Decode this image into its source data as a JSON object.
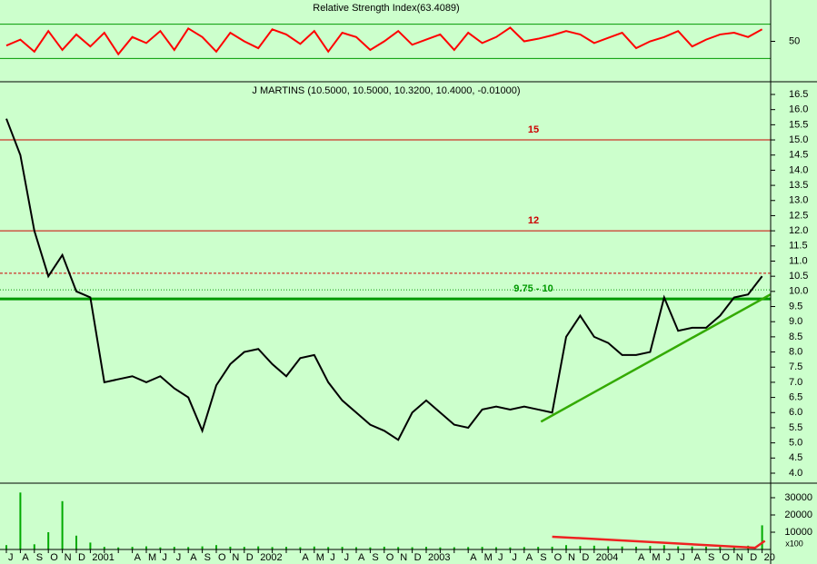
{
  "chart_data": [
    {
      "type": "line",
      "title": "Relative Strength Index(63.4089)",
      "ylim": [
        5,
        95
      ],
      "yticks": [
        50
      ],
      "ref_lines": [
        30,
        70
      ],
      "color": "#ff0000",
      "values": [
        45,
        52,
        38,
        62,
        40,
        58,
        44,
        60,
        35,
        55,
        48,
        62,
        40,
        65,
        55,
        38,
        60,
        50,
        42,
        64,
        58,
        47,
        62,
        38,
        60,
        55,
        40,
        50,
        62,
        46,
        52,
        58,
        40,
        60,
        48,
        55,
        66,
        50,
        53,
        57,
        62,
        58,
        48,
        54,
        60,
        42,
        50,
        55,
        62,
        44,
        52,
        58,
        60,
        55,
        64
      ]
    },
    {
      "type": "line",
      "title": "J MARTINS (10.5000, 10.5000, 10.3200, 10.4000, -0.01000)",
      "color": "#000000",
      "ylim": [
        3.7,
        16.86
      ],
      "yticks": [
        {
          "value": 4,
          "label": "4.0"
        },
        {
          "value": 4.5,
          "label": "4.5"
        },
        {
          "value": 5,
          "label": "5.0"
        },
        {
          "value": 5.5,
          "label": "5.5"
        },
        {
          "value": 6,
          "label": "6.0"
        },
        {
          "value": 6.5,
          "label": "6.5"
        },
        {
          "value": 7,
          "label": "7.0"
        },
        {
          "value": 7.5,
          "label": "7.5"
        },
        {
          "value": 8,
          "label": "8.0"
        },
        {
          "value": 8.5,
          "label": "8.5"
        },
        {
          "value": 9,
          "label": "9.0"
        },
        {
          "value": 9.5,
          "label": "9.5"
        },
        {
          "value": 10,
          "label": "10.0"
        },
        {
          "value": 10.5,
          "label": "10.5"
        },
        {
          "value": 11,
          "label": "11.0"
        },
        {
          "value": 11.5,
          "label": "11.5"
        },
        {
          "value": 12,
          "label": "12.0"
        },
        {
          "value": 12.5,
          "label": "12.5"
        },
        {
          "value": 13,
          "label": "13.0"
        },
        {
          "value": 13.5,
          "label": "13.5"
        },
        {
          "value": 14,
          "label": "14.0"
        },
        {
          "value": 14.5,
          "label": "14.5"
        },
        {
          "value": 15,
          "label": "15.0"
        },
        {
          "value": 15.5,
          "label": "15.5"
        },
        {
          "value": 16,
          "label": "16.0"
        },
        {
          "value": 16.5,
          "label": "16.5"
        }
      ],
      "values": [
        15.7,
        14.5,
        12.0,
        10.5,
        11.2,
        10.0,
        9.8,
        7.0,
        7.1,
        7.2,
        7.0,
        7.2,
        6.8,
        6.5,
        5.4,
        6.9,
        7.6,
        8.0,
        8.1,
        7.6,
        7.2,
        7.8,
        7.9,
        7.0,
        6.4,
        6.0,
        5.6,
        5.4,
        5.1,
        6.0,
        6.4,
        6.0,
        5.6,
        5.5,
        6.1,
        6.2,
        6.1,
        6.2,
        6.1,
        6.0,
        8.5,
        9.2,
        8.5,
        8.3,
        7.9,
        7.9,
        8.0,
        9.8,
        8.7,
        8.8,
        8.8,
        9.2,
        9.8,
        9.9,
        10.5
      ],
      "ref_lines": [
        {
          "value": 15,
          "color": "#cc0000",
          "label": "15"
        },
        {
          "value": 12,
          "color": "#cc0000",
          "label": "12"
        },
        {
          "value": 9.75,
          "color": "#009900",
          "label": "9.75 - 10"
        },
        {
          "value": 10.6,
          "color": "#cc0000"
        },
        {
          "value": 10.05,
          "color": "#009900"
        }
      ],
      "trend": {
        "x": [
          38.2,
          54.6
        ],
        "values": [
          5.7,
          9.9
        ],
        "color": "#33aa00"
      }
    },
    {
      "type": "bar",
      "color": "#00aa00",
      "ylim": [
        0,
        37900
      ],
      "yticks": [
        10000,
        20000,
        30000
      ],
      "unit_label": "x100",
      "categories": [
        "J",
        "A",
        "S",
        "O",
        "N",
        "D",
        "2001",
        null,
        null,
        "A",
        "M",
        "J",
        "J",
        "A",
        "S",
        "O",
        "N",
        "D",
        "2002",
        null,
        null,
        "A",
        "M",
        "J",
        "J",
        "A",
        "S",
        "O",
        "N",
        "D",
        "2003",
        null,
        null,
        "A",
        "M",
        "J",
        "J",
        "A",
        "S",
        "O",
        "N",
        "D",
        "2004",
        null,
        null,
        "A",
        "M",
        "J",
        "J",
        "A",
        "S",
        "O",
        "N",
        "D",
        "20"
      ],
      "values": [
        2500,
        33000,
        3000,
        10000,
        28000,
        8000,
        4000,
        1500,
        1200,
        1500,
        1800,
        1200,
        1500,
        1400,
        1800,
        2500,
        1600,
        1500,
        1800,
        1400,
        1500,
        1300,
        1700,
        1400,
        1500,
        1300,
        1200,
        1600,
        1400,
        1300,
        1500,
        1200,
        1300,
        1400,
        1500,
        1300,
        1200,
        1400,
        1500,
        1600,
        2500,
        2000,
        2200,
        1800,
        1700,
        1600,
        2000,
        2500,
        1800,
        1700,
        1600,
        1800,
        2000,
        2200,
        14000
      ],
      "trend": {
        "x": [
          39,
          53.5,
          54.2
        ],
        "values": [
          7400,
          1000,
          5000
        ],
        "color": "#ee2222"
      }
    }
  ]
}
